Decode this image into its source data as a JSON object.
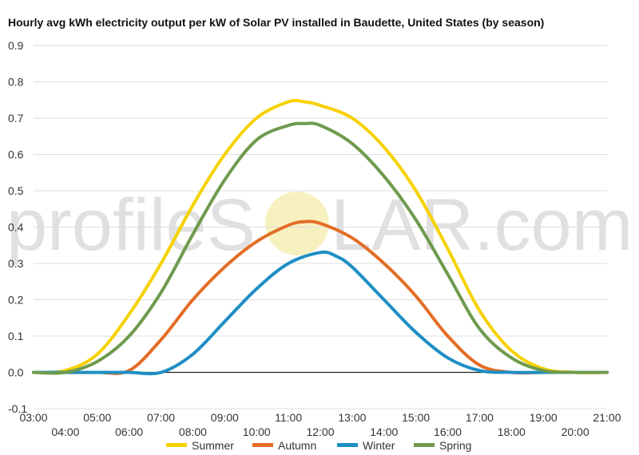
{
  "chart_data": {
    "type": "line",
    "title": "Hourly avg kWh electricity output per kW of Solar PV installed in Baudette, United States (by season)",
    "watermark": [
      "profileS",
      "LAR.com"
    ],
    "xlabel": "",
    "ylabel": "",
    "x_ticks": [
      "03:00",
      "04:00",
      "05:00",
      "06:00",
      "07:00",
      "08:00",
      "09:00",
      "10:00",
      "11:00",
      "12:00",
      "13:00",
      "14:00",
      "15:00",
      "16:00",
      "17:00",
      "18:00",
      "19:00",
      "20:00",
      "21:00"
    ],
    "y_ticks": [
      "-0.1",
      "0.0",
      "0.1",
      "0.2",
      "0.3",
      "0.4",
      "0.5",
      "0.6",
      "0.7",
      "0.8",
      "0.9"
    ],
    "ylim": [
      -0.1,
      0.9
    ],
    "xlim": [
      3,
      21
    ],
    "grid": true,
    "legend_position": "bottom",
    "series": [
      {
        "name": "Summer",
        "color": "#f7d100",
        "x": [
          3,
          4,
          5,
          6,
          7,
          8,
          9,
          10,
          11,
          11.5,
          12,
          13,
          14,
          15,
          16,
          17,
          18,
          19,
          20,
          21
        ],
        "y": [
          0.0,
          0.005,
          0.05,
          0.16,
          0.3,
          0.46,
          0.6,
          0.7,
          0.745,
          0.745,
          0.735,
          0.7,
          0.62,
          0.5,
          0.34,
          0.17,
          0.06,
          0.01,
          0.0,
          0.0
        ]
      },
      {
        "name": "Autumn",
        "color": "#e36d25",
        "x": [
          3,
          4,
          5,
          6,
          7,
          8,
          9,
          10,
          11,
          11.5,
          12,
          13,
          14,
          15,
          16,
          17,
          18,
          19,
          20,
          21
        ],
        "y": [
          0.0,
          0.0,
          0.0,
          0.005,
          0.09,
          0.2,
          0.29,
          0.36,
          0.405,
          0.415,
          0.41,
          0.37,
          0.3,
          0.21,
          0.1,
          0.02,
          0.0,
          0.0,
          0.0,
          0.0
        ]
      },
      {
        "name": "Winter",
        "color": "#1e8fc4",
        "x": [
          3,
          4,
          5,
          6,
          7,
          8,
          9,
          10,
          11,
          12,
          12.5,
          13,
          14,
          15,
          16,
          17,
          18,
          19,
          20,
          21
        ],
        "y": [
          0.0,
          0.0,
          0.0,
          0.0,
          0.0,
          0.05,
          0.14,
          0.23,
          0.3,
          0.33,
          0.32,
          0.29,
          0.2,
          0.11,
          0.04,
          0.005,
          0.0,
          0.0,
          0.0,
          0.0
        ]
      },
      {
        "name": "Spring",
        "color": "#6f9a4e",
        "x": [
          3,
          4,
          5,
          6,
          7,
          8,
          9,
          10,
          11,
          11.5,
          12,
          13,
          14,
          15,
          16,
          17,
          18,
          19,
          20,
          21
        ],
        "y": [
          0.0,
          0.0,
          0.03,
          0.1,
          0.22,
          0.38,
          0.53,
          0.64,
          0.68,
          0.685,
          0.68,
          0.63,
          0.54,
          0.42,
          0.27,
          0.12,
          0.04,
          0.005,
          0.0,
          0.0
        ]
      }
    ]
  }
}
